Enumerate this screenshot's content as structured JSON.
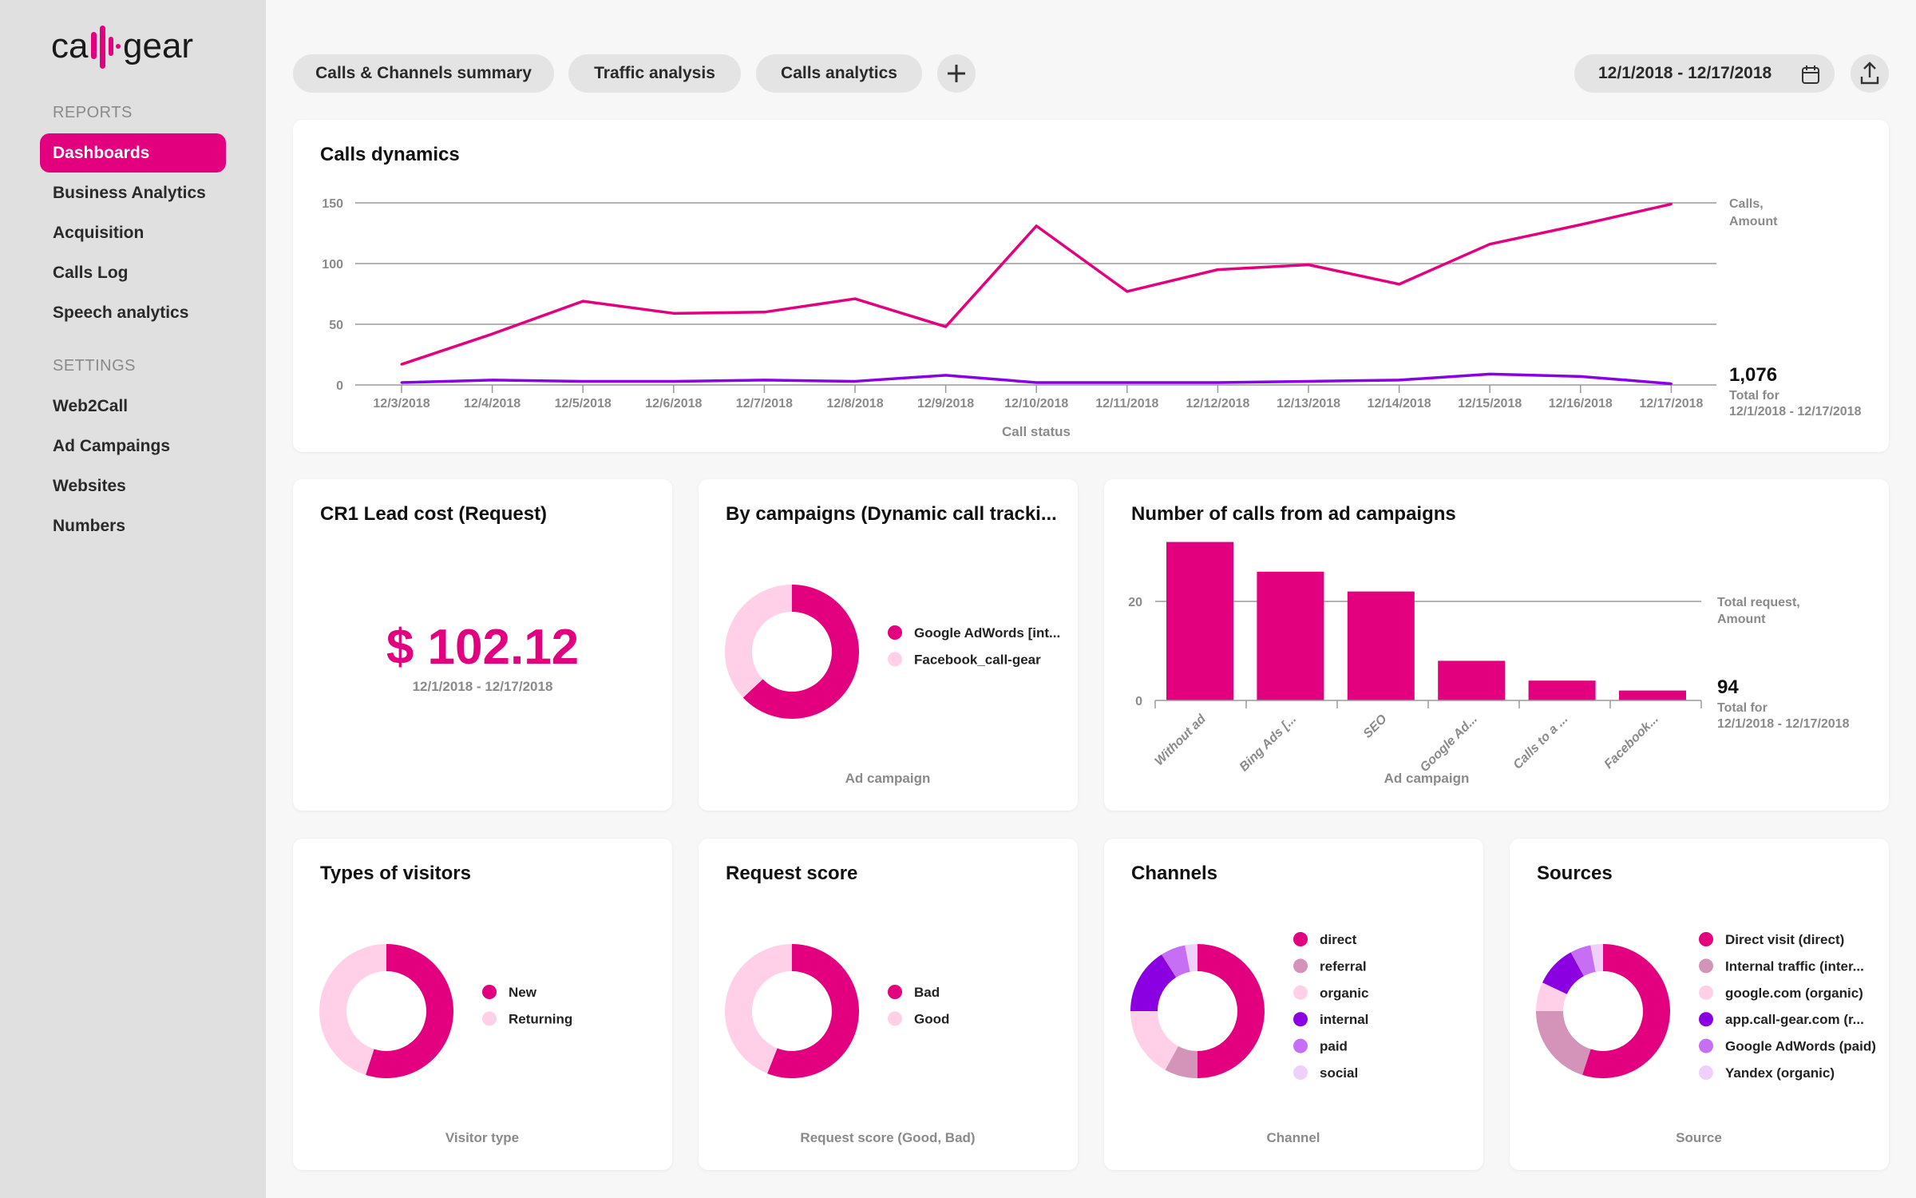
{
  "colors": {
    "accent": "#e2007f",
    "purple": "#8a00e6",
    "light_pink": "#ffd0e8"
  },
  "logo": {
    "text": "call-gear"
  },
  "sidebar": {
    "reports_label": "REPORTS",
    "settings_label": "SETTINGS",
    "reports": [
      {
        "label": "Dashboards",
        "active": true
      },
      {
        "label": "Business Analytics"
      },
      {
        "label": "Acquisition"
      },
      {
        "label": "Calls Log"
      },
      {
        "label": "Speech analytics"
      }
    ],
    "settings": [
      {
        "label": "Web2Call"
      },
      {
        "label": "Ad Campaings"
      },
      {
        "label": "Websites"
      },
      {
        "label": "Numbers"
      }
    ]
  },
  "tabs": [
    {
      "label": "Calls & Channels summary"
    },
    {
      "label": "Traffic analysis"
    },
    {
      "label": "Calls analytics"
    }
  ],
  "add_tab_icon": "plus-icon",
  "date_range": "12/1/2018 - 12/17/2018",
  "calendar_icon": "calendar-icon",
  "export_icon": "upload-icon",
  "calls_dynamics": {
    "title": "Calls dynamics",
    "legend_line1": "Calls,",
    "legend_line2": "Amount",
    "total": "1,076",
    "total_label": "Total for",
    "total_range": "12/1/2018 - 12/17/2018",
    "xlabel": "Call status"
  },
  "cr1": {
    "title": "CR1 Lead cost (Request)",
    "value": "$ 102.12",
    "range": "12/1/2018 - 12/17/2018"
  },
  "by_campaigns": {
    "title": "By campaigns (Dynamic call tracki...",
    "caption": "Ad campaign"
  },
  "ad_calls": {
    "title": "Number of calls from ad campaigns",
    "legend_line1": "Total request,",
    "legend_line2": "Amount",
    "total": "94",
    "total_label": "Total for",
    "total_range": "12/1/2018 - 12/17/2018",
    "xlabel": "Ad campaign"
  },
  "visitors": {
    "title": "Types of visitors",
    "caption": "Visitor type"
  },
  "request_score": {
    "title": "Request score",
    "caption": "Request score (Good, Bad)"
  },
  "channels": {
    "title": "Channels",
    "caption": "Channel"
  },
  "sources": {
    "title": "Sources",
    "caption": "Source"
  },
  "chart_data": [
    {
      "type": "line",
      "x": [
        "12/3/2018",
        "12/4/2018",
        "12/5/2018",
        "12/6/2018",
        "12/7/2018",
        "12/8/2018",
        "12/9/2018",
        "12/10/2018",
        "12/11/2018",
        "12/12/2018",
        "12/13/2018",
        "12/14/2018",
        "12/15/2018",
        "12/16/2018",
        "12/17/2018"
      ],
      "series": [
        {
          "color": "#e2007f",
          "values": [
            17,
            42,
            69,
            59,
            60,
            71,
            48,
            131,
            77,
            95,
            99,
            83,
            116,
            132,
            149
          ]
        },
        {
          "color": "#8a00e6",
          "values": [
            2,
            4,
            3,
            3,
            4,
            3,
            8,
            2,
            2,
            2,
            3,
            4,
            9,
            7,
            1
          ]
        }
      ],
      "yticks": [
        0,
        50,
        100,
        150
      ],
      "ylim": [
        0,
        150
      ],
      "xlabel": "Call status",
      "grid": true
    },
    {
      "type": "pie",
      "labels": [
        "Google AdWords [int...",
        "Facebook_call-gear"
      ],
      "values": [
        63,
        37
      ],
      "colors": [
        "#e2007f",
        "#ffd0e8"
      ],
      "xlabel": "Ad campaign"
    },
    {
      "type": "bar",
      "categories": [
        "Without ad",
        "Bing Ads [...",
        "SEO",
        "Google Ad...",
        "Calls to a ...",
        "Facebook..."
      ],
      "values": [
        32,
        26,
        22,
        8,
        4,
        2
      ],
      "yticks": [
        0,
        20
      ],
      "xlabel": "Ad campaign",
      "color": "#e2007f"
    },
    {
      "type": "pie",
      "labels": [
        "New",
        "Returning"
      ],
      "values": [
        55,
        45
      ],
      "colors": [
        "#e2007f",
        "#ffd0e8"
      ],
      "xlabel": "Visitor type"
    },
    {
      "type": "pie",
      "labels": [
        "Bad",
        "Good"
      ],
      "values": [
        56,
        44
      ],
      "colors": [
        "#e2007f",
        "#ffd0e8"
      ],
      "xlabel": "Request score (Good, Bad)"
    },
    {
      "type": "pie",
      "labels": [
        "direct",
        "referral",
        "organic",
        "internal",
        "paid",
        "social"
      ],
      "values": [
        50,
        8,
        17,
        16,
        6,
        3
      ],
      "colors": [
        "#e2007f",
        "#d493b9",
        "#ffd0e8",
        "#8a00e0",
        "#c66ff5",
        "#efd0fb"
      ],
      "xlabel": "Channel"
    },
    {
      "type": "pie",
      "labels": [
        "Direct visit (direct)",
        "Internal traffic (inter...",
        "google.com (organic)",
        "app.call-gear.com (r...",
        "Google AdWords (paid)",
        "Yandex (organic)"
      ],
      "values": [
        55,
        20,
        7,
        10,
        5,
        3
      ],
      "colors": [
        "#e2007f",
        "#d493b9",
        "#ffd0e8",
        "#8a00e0",
        "#c66ff5",
        "#efd0fb"
      ],
      "xlabel": "Source"
    }
  ]
}
